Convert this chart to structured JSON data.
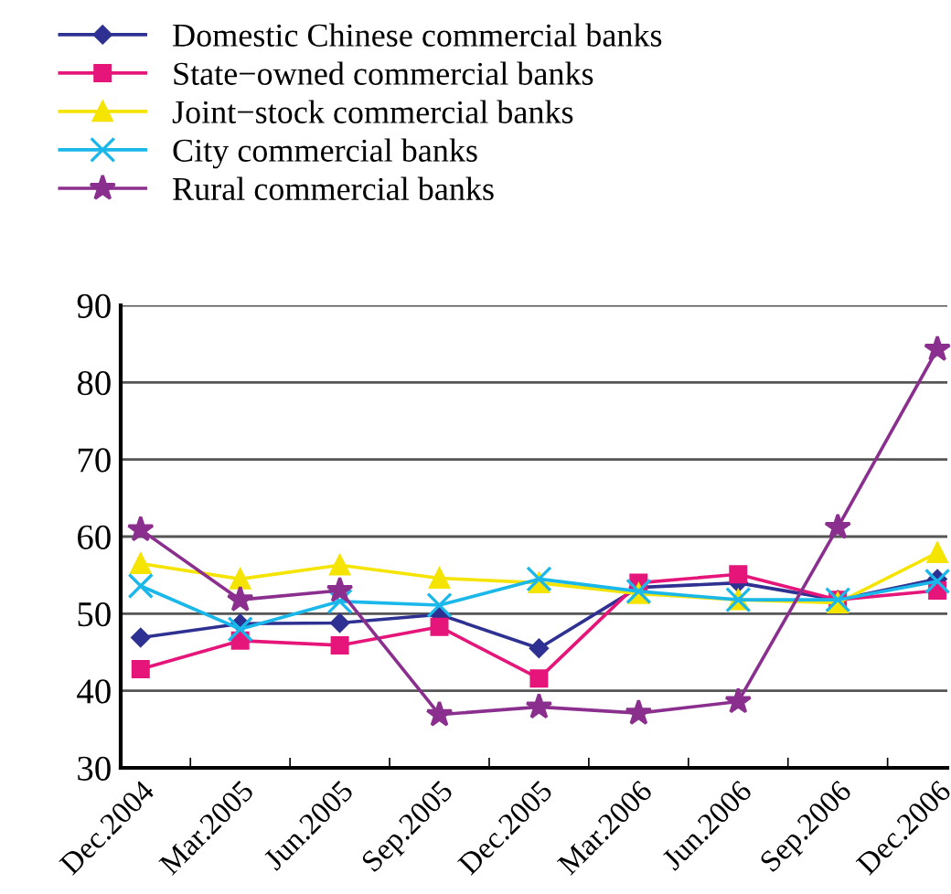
{
  "chart_data": {
    "type": "line",
    "categories": [
      "Dec.2004",
      "Mar.2005",
      "Jun.2005",
      "Sep.2005",
      "Dec.2005",
      "Mar.2006",
      "Jun.2006",
      "Sep.2006",
      "Dec.2006"
    ],
    "series": [
      {
        "name": "Domestic Chinese commercial banks",
        "color": "#2e3192",
        "marker": "diamond",
        "values": [
          46.9,
          48.7,
          48.8,
          49.9,
          45.5,
          53.4,
          54.0,
          51.8,
          54.5
        ]
      },
      {
        "name": "State−owned commercial banks",
        "color": "#e6157a",
        "marker": "square",
        "values": [
          42.8,
          46.5,
          45.9,
          48.3,
          41.6,
          54.0,
          55.1,
          51.8,
          53.0
        ]
      },
      {
        "name": "Joint−stock commercial banks",
        "color": "#f5e400",
        "marker": "triangle",
        "values": [
          56.5,
          54.5,
          56.3,
          54.6,
          54.0,
          52.6,
          51.8,
          51.4,
          57.9
        ]
      },
      {
        "name": "City commercial banks",
        "color": "#1ab7ea",
        "marker": "cross",
        "values": [
          53.6,
          48.0,
          51.6,
          51.1,
          54.5,
          52.9,
          51.8,
          51.8,
          54.2
        ]
      },
      {
        "name": "Rural commercial banks",
        "color": "#8b2f8f",
        "marker": "star",
        "values": [
          60.9,
          51.8,
          53.0,
          36.9,
          37.9,
          37.1,
          38.6,
          61.2,
          84.3
        ]
      }
    ],
    "ylim": [
      30,
      90
    ],
    "yticks": [
      30,
      40,
      50,
      60,
      70,
      80,
      90
    ],
    "grid": "y",
    "legend": "top"
  }
}
